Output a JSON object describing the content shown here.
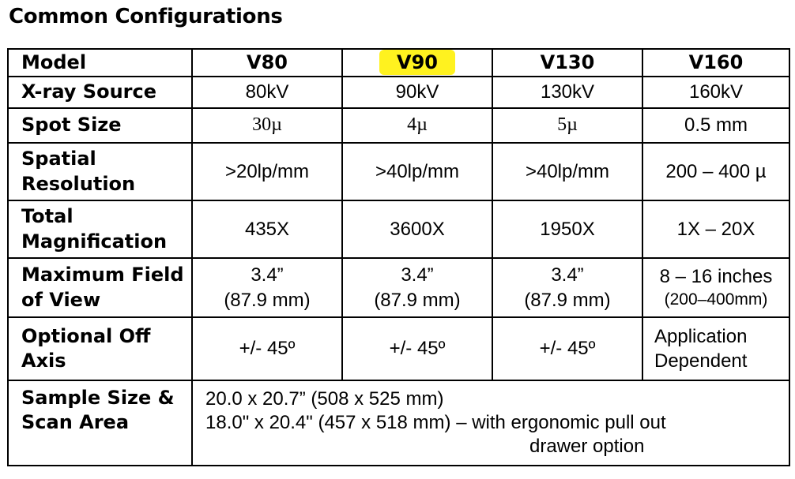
{
  "page": {
    "title": "Common Configurations"
  },
  "table": {
    "model_label": "Model",
    "models": [
      "V80",
      "V90",
      "V130",
      "V160"
    ],
    "highlighted_model": "V90",
    "highlight_color": "#fff21f",
    "rows": {
      "xray": {
        "label": "X-ray Source",
        "values": [
          "80kV",
          "90kV",
          "130kV",
          "160kV"
        ]
      },
      "spot": {
        "label": "Spot Size",
        "values": [
          "30µ",
          "4µ",
          "5µ",
          "0.5 mm"
        ]
      },
      "spatial": {
        "label_line1": "Spatial",
        "label_line2": "Resolution",
        "values": [
          ">20lp/mm",
          ">40lp/mm",
          ">40lp/mm",
          "200 – 400 µ"
        ]
      },
      "mag": {
        "label_line1": "Total",
        "label_line2": "Magnification",
        "values": [
          "435X",
          "3600X",
          "1950X",
          "1X – 20X"
        ]
      },
      "fov": {
        "label_line1": "Maximum Field",
        "label_line2": "of View",
        "values": [
          {
            "line1": "3.4”",
            "line2": "(87.9 mm)"
          },
          {
            "line1": "3.4”",
            "line2": "(87.9 mm)"
          },
          {
            "line1": "3.4”",
            "line2": "(87.9 mm)"
          },
          {
            "line1": "8 – 16 inches",
            "line2": "(200–400mm)"
          }
        ]
      },
      "offaxis": {
        "label_line1": "Optional Off",
        "label_line2": "Axis",
        "values": [
          "+/- 45º",
          "+/- 45º",
          "+/- 45º"
        ],
        "v160_line1": "Application",
        "v160_line2": "Dependent"
      },
      "sample": {
        "label_line1": "Sample Size &",
        "label_line2": "Scan Area",
        "line1": "20.0 x 20.7” (508 x 525 mm)",
        "line2": "18.0\" x 20.4\" (457 x 518 mm) – with ergonomic pull out",
        "line3": "drawer option"
      }
    }
  }
}
